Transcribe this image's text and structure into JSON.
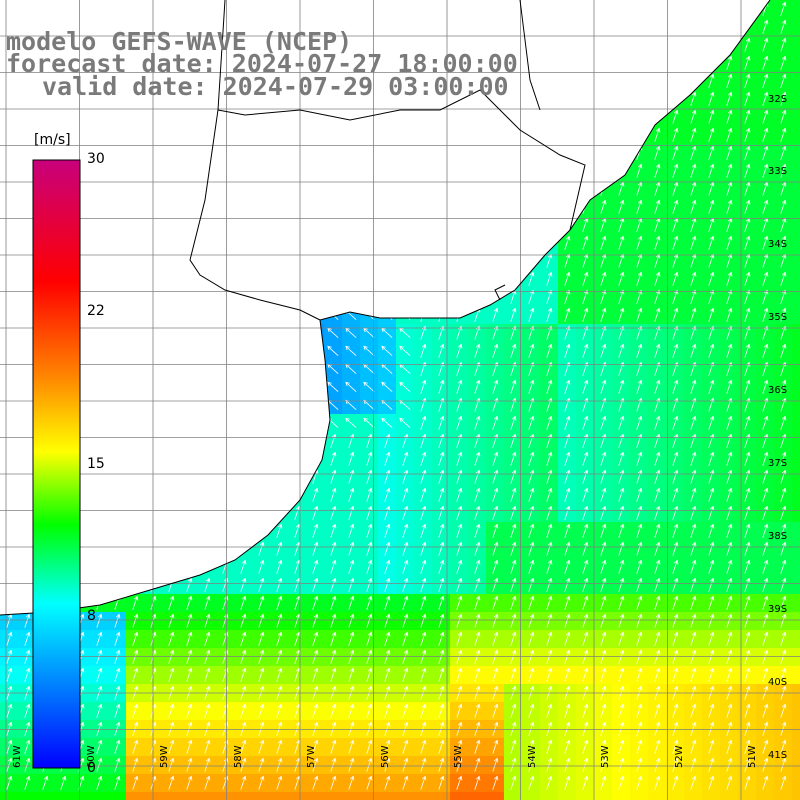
{
  "header": {
    "line1": "modelo GEFS-WAVE (NCEP)",
    "line2": "forecast date: 2024-07-27 18:00:00",
    "line3": "valid date: 2024-07-29 03:00:00"
  },
  "colorbar": {
    "unit": "[m/s]",
    "ticks": [
      "30",
      "22",
      "15",
      "8",
      "0"
    ],
    "tick_values": [
      30,
      22,
      15,
      8,
      0
    ],
    "min": 0,
    "max": 30,
    "colors": [
      "#0000ff",
      "#00aaff",
      "#00ffff",
      "#00ff00",
      "#ffff00",
      "#ff8000",
      "#ff0000",
      "#c8007c"
    ]
  },
  "map": {
    "lat_labels": [
      "32S",
      "33S",
      "34S",
      "35S",
      "36S",
      "37S",
      "38S",
      "39S",
      "40S",
      "41S"
    ],
    "lon_labels": [
      "61W",
      "60W",
      "59W",
      "58W",
      "57W",
      "56W",
      "55W",
      "54W",
      "53W",
      "52W",
      "51W"
    ],
    "land_color": "#ffffff",
    "grid_color": "#808080",
    "coast_color": "#000000",
    "arrow_color": "#ffffff",
    "wind_direction": "NNE"
  }
}
